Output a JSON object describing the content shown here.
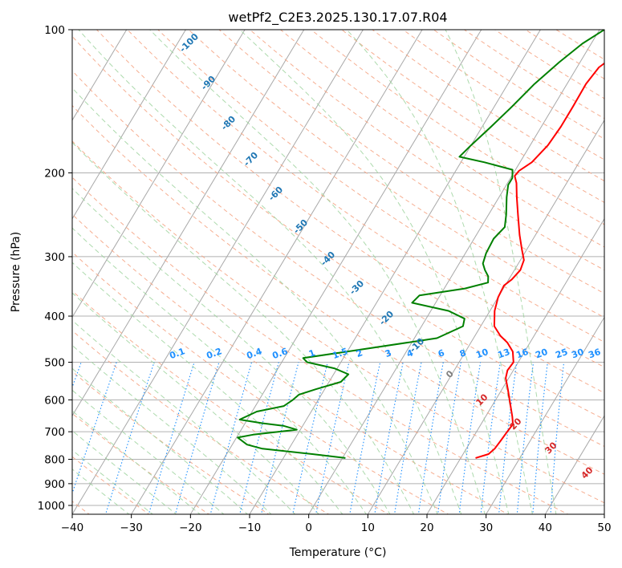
{
  "chart_data": {
    "type": "line",
    "title": "wetPf2_C2E3.2025.130.17.07.R04",
    "xlabel": "Temperature (°C)",
    "ylabel": "Pressure (hPa)",
    "xlim": [
      -40,
      50
    ],
    "ylim": [
      1050,
      100
    ],
    "y_scale": "log",
    "grid": true,
    "x_ticks": [
      -40,
      -30,
      -20,
      -10,
      0,
      10,
      20,
      30,
      40,
      50
    ],
    "y_ticks": [
      1000,
      900,
      800,
      700,
      600,
      500,
      400,
      300,
      200,
      100
    ],
    "series": [
      {
        "name": "",
        "color": "#ff0000",
        "points": [
          [
            22.5,
            795
          ],
          [
            24.3,
            780
          ],
          [
            24.8,
            760
          ],
          [
            25.0,
            730
          ],
          [
            25.2,
            700
          ],
          [
            25.4,
            675
          ],
          [
            24.5,
            650
          ],
          [
            22.8,
            610
          ],
          [
            21.0,
            570
          ],
          [
            19.5,
            540
          ],
          [
            19.0,
            520
          ],
          [
            19.2,
            500
          ],
          [
            18.0,
            475
          ],
          [
            16.2,
            455
          ],
          [
            14.3,
            440
          ],
          [
            12.3,
            420
          ],
          [
            10.8,
            390
          ],
          [
            10.0,
            365
          ],
          [
            9.8,
            345
          ],
          [
            10.5,
            335
          ],
          [
            11.0,
            320
          ],
          [
            10.6,
            305
          ],
          [
            9.2,
            290
          ],
          [
            7.3,
            270
          ],
          [
            5.0,
            245
          ],
          [
            3.0,
            225
          ],
          [
            1.5,
            210
          ],
          [
            0.5,
            203
          ],
          [
            0.7,
            198
          ],
          [
            2.0,
            190
          ],
          [
            3.0,
            175
          ],
          [
            3.3,
            160
          ],
          [
            3.3,
            145
          ],
          [
            3.2,
            130
          ],
          [
            3.7,
            120
          ],
          [
            5.5,
            112
          ],
          [
            7.0,
            105
          ],
          [
            8.2,
            100
          ]
        ]
      },
      {
        "name": "",
        "color": "#008000",
        "points": [
          [
            0.5,
            795
          ],
          [
            -5.5,
            780
          ],
          [
            -14.5,
            760
          ],
          [
            -17.5,
            745
          ],
          [
            -19.8,
            720
          ],
          [
            -17.5,
            710
          ],
          [
            -10.6,
            693
          ],
          [
            -13.3,
            680
          ],
          [
            -17.0,
            672
          ],
          [
            -21.3,
            660
          ],
          [
            -19.2,
            635
          ],
          [
            -15.2,
            618
          ],
          [
            -14.3,
            600
          ],
          [
            -13.8,
            585
          ],
          [
            -11.5,
            570
          ],
          [
            -8.0,
            550
          ],
          [
            -7.5,
            530
          ],
          [
            -10.5,
            515
          ],
          [
            -15.7,
            500
          ],
          [
            -16.8,
            490
          ],
          [
            -10.0,
            475
          ],
          [
            3.8,
            445
          ],
          [
            7.0,
            420
          ],
          [
            6.5,
            405
          ],
          [
            3.0,
            390
          ],
          [
            -4.0,
            375
          ],
          [
            -3.5,
            362
          ],
          [
            3.5,
            350
          ],
          [
            6.8,
            340
          ],
          [
            6.2,
            330
          ],
          [
            5.0,
            320
          ],
          [
            4.0,
            310
          ],
          [
            3.5,
            295
          ],
          [
            3.3,
            275
          ],
          [
            4.0,
            260
          ],
          [
            3.0,
            245
          ],
          [
            1.3,
            225
          ],
          [
            0.3,
            212
          ],
          [
            0.3,
            205
          ],
          [
            -0.5,
            197
          ],
          [
            -6.0,
            190
          ],
          [
            -10.8,
            185
          ],
          [
            -10.0,
            175
          ],
          [
            -8.5,
            160
          ],
          [
            -7.0,
            145
          ],
          [
            -5.5,
            130
          ],
          [
            -3.5,
            117
          ],
          [
            -1.5,
            107
          ],
          [
            0.8,
            100
          ]
        ]
      }
    ],
    "dry_adiabat_labels": [
      "-100",
      "-90",
      "-80",
      "-70",
      "-60",
      "-50",
      "-40",
      "-30",
      "-20",
      "-10"
    ],
    "moist_adiabat_labels": [
      "0",
      "10",
      "20",
      "30",
      "40"
    ],
    "mixing_ratio_labels": [
      "0.1",
      "0.2",
      "0.4",
      "0.6",
      "1",
      "1.5",
      "2",
      "3",
      "4",
      "6",
      "8",
      "10",
      "13",
      "16",
      "20",
      "25",
      "30",
      "36"
    ]
  }
}
